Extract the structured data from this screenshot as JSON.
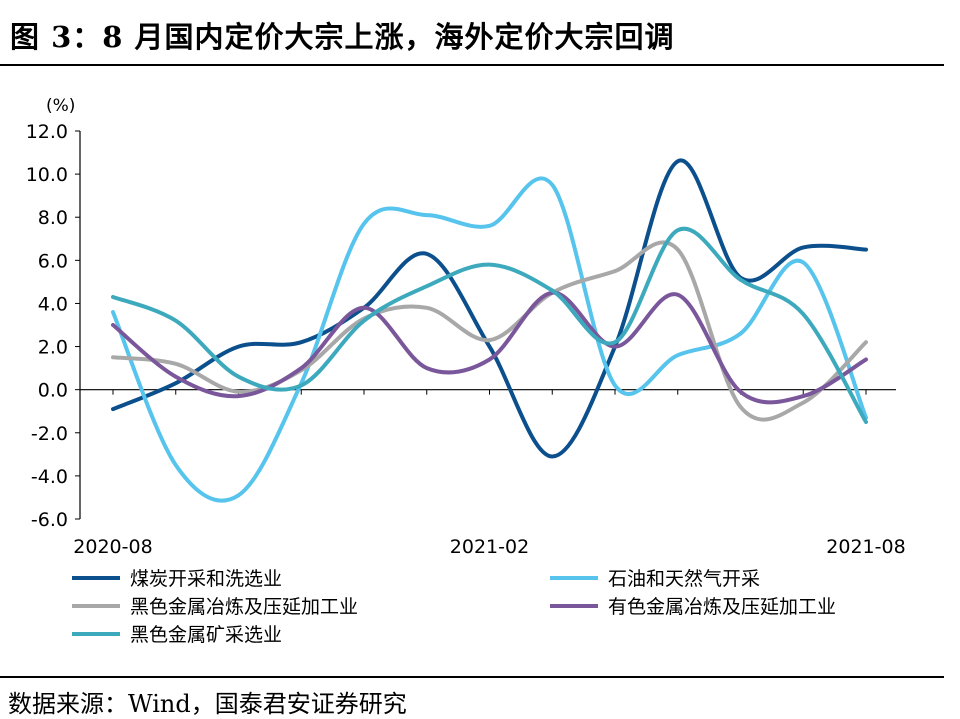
{
  "figure_title": "图 3：8 月国内定价大宗上涨，海外定价大宗回调",
  "source_note": "数据来源：Wind，国泰君安证券研究",
  "chart_data": {
    "type": "line",
    "title": "",
    "xlabel": "",
    "ylabel": "",
    "unit_label": "(%)",
    "ylim": [
      -6.0,
      12.0
    ],
    "y_ticks": [
      "12.0",
      "10.0",
      "8.0",
      "6.0",
      "4.0",
      "2.0",
      "0.0",
      "-2.0",
      "-4.0",
      "-6.0"
    ],
    "x": [
      "2020-08",
      "2020-09",
      "2020-10",
      "2020-11",
      "2020-12",
      "2021-01",
      "2021-02",
      "2021-03",
      "2021-04",
      "2021-05",
      "2021-06",
      "2021-07",
      "2021-08"
    ],
    "x_tick_labels": [
      "2020-08",
      "2021-02",
      "2021-08"
    ],
    "legend_placement": "bottom",
    "series": [
      {
        "name": "煤炭开采和洗选业",
        "color": "#0b4f8c",
        "values": [
          -0.9,
          0.3,
          2.0,
          2.2,
          3.8,
          6.3,
          2.0,
          -3.1,
          2.0,
          10.6,
          5.2,
          6.6,
          6.5
        ]
      },
      {
        "name": "石油和天然气开采",
        "color": "#56c4ec",
        "values": [
          3.6,
          -3.5,
          -4.9,
          0.3,
          7.7,
          8.1,
          7.6,
          9.5,
          0.2,
          1.6,
          2.6,
          5.9,
          -1.3
        ]
      },
      {
        "name": "黑色金属冶炼及压延加工业",
        "color": "#a8a8a8",
        "values": [
          1.5,
          1.2,
          -0.1,
          0.9,
          3.3,
          3.8,
          2.3,
          4.5,
          5.5,
          6.5,
          -0.8,
          -0.6,
          2.2
        ]
      },
      {
        "name": "有色金属冶炼及压延加工业",
        "color": "#7a579a",
        "values": [
          3.0,
          0.6,
          -0.3,
          1.0,
          3.8,
          1.0,
          1.4,
          4.5,
          2.0,
          4.4,
          -0.1,
          -0.3,
          1.4
        ]
      },
      {
        "name": "黑色金属矿采选业",
        "color": "#3da9bd",
        "values": [
          4.3,
          3.2,
          0.6,
          0.2,
          3.2,
          4.8,
          5.8,
          4.6,
          2.2,
          7.4,
          5.1,
          3.5,
          -1.5
        ]
      }
    ]
  }
}
